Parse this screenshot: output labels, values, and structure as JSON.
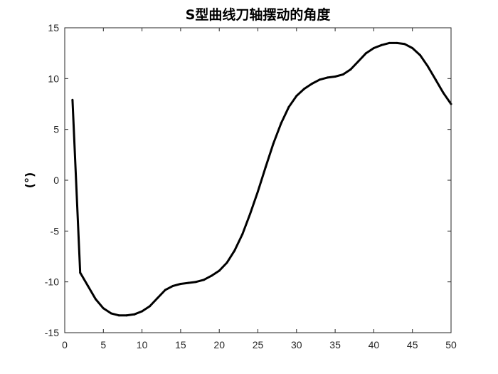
{
  "chart_data": {
    "type": "line",
    "title": "S型曲线刀轴摆动的角度",
    "xlabel": "",
    "ylabel": "(°)",
    "xlim": [
      0,
      50
    ],
    "ylim": [
      -15,
      15
    ],
    "xticks": [
      0,
      5,
      10,
      15,
      20,
      25,
      30,
      35,
      40,
      45,
      50
    ],
    "yticks": [
      -15,
      -10,
      -5,
      0,
      5,
      10,
      15
    ],
    "x_tick_labels": [
      "0",
      "5",
      "10",
      "15",
      "20",
      "25",
      "30",
      "35",
      "40",
      "45",
      "50"
    ],
    "y_tick_labels": [
      "-15",
      "-10",
      "-5",
      "0",
      "5",
      "10",
      "15"
    ],
    "grid": false,
    "line_color": "#000000",
    "series": [
      {
        "x": [
          1,
          2,
          3,
          4,
          5,
          6,
          7,
          8,
          9,
          10,
          11,
          12,
          13,
          14,
          15,
          16,
          17,
          18,
          19,
          20,
          21,
          22,
          23,
          24,
          25,
          26,
          27,
          28,
          29,
          30,
          31,
          32,
          33,
          34,
          35,
          36,
          37,
          38,
          39,
          40,
          41,
          42,
          43,
          44,
          45,
          46,
          47,
          48,
          49,
          50
        ],
        "values": [
          7.9,
          -9.1,
          -10.4,
          -11.7,
          -12.6,
          -13.1,
          -13.3,
          -13.3,
          -13.2,
          -12.9,
          -12.4,
          -11.6,
          -10.8,
          -10.4,
          -10.2,
          -10.1,
          -10.0,
          -9.8,
          -9.4,
          -8.9,
          -8.1,
          -6.9,
          -5.3,
          -3.3,
          -1.1,
          1.3,
          3.6,
          5.6,
          7.2,
          8.3,
          9.0,
          9.5,
          9.9,
          10.1,
          10.2,
          10.4,
          10.9,
          11.7,
          12.5,
          13.0,
          13.3,
          13.5,
          13.5,
          13.4,
          13.0,
          12.3,
          11.2,
          9.9,
          8.6,
          7.5
        ]
      }
    ]
  }
}
